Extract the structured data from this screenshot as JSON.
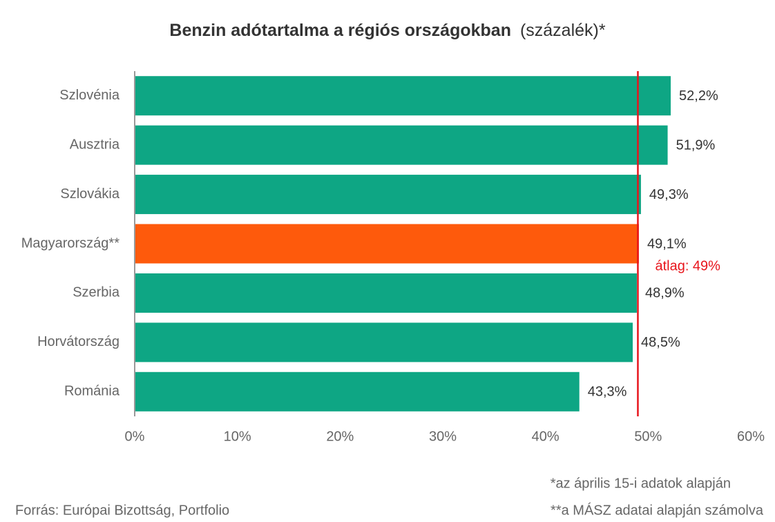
{
  "chart_data": {
    "type": "hbar",
    "title": "Benzin adótartalma a régiós országokban",
    "subtitle": "(százalék)*",
    "categories": [
      "Szlovénia",
      "Ausztria",
      "Szlovákia",
      "Magyarország**",
      "Szerbia",
      "Horvátország",
      "Románia"
    ],
    "values": [
      52.2,
      51.9,
      49.3,
      49.1,
      48.9,
      48.5,
      43.3
    ],
    "value_labels": [
      "52,2%",
      "51,9%",
      "49,3%",
      "49,1%",
      "48,9%",
      "48,5%",
      "43,3%"
    ],
    "colors": [
      "#0ea684",
      "#0ea684",
      "#0ea684",
      "#fe5a0c",
      "#0ea684",
      "#0ea684",
      "#0ea684"
    ],
    "xlim": [
      0,
      60
    ],
    "xticks": [
      {
        "value": 0,
        "label": "0%"
      },
      {
        "value": 10,
        "label": "10%"
      },
      {
        "value": 20,
        "label": "20%"
      },
      {
        "value": 30,
        "label": "30%"
      },
      {
        "value": 40,
        "label": "40%"
      },
      {
        "value": 50,
        "label": "50%"
      },
      {
        "value": 60,
        "label": "60%"
      }
    ],
    "grid": false,
    "average": {
      "value": 49,
      "label": "átlag: 49%",
      "color": "#e8141b"
    },
    "notes": [
      "*az április 15-i adatok alapján",
      "**a MÁSZ adatai alapján számolva"
    ],
    "source": "Forrás: Európai Bizottság, Portfolio"
  }
}
